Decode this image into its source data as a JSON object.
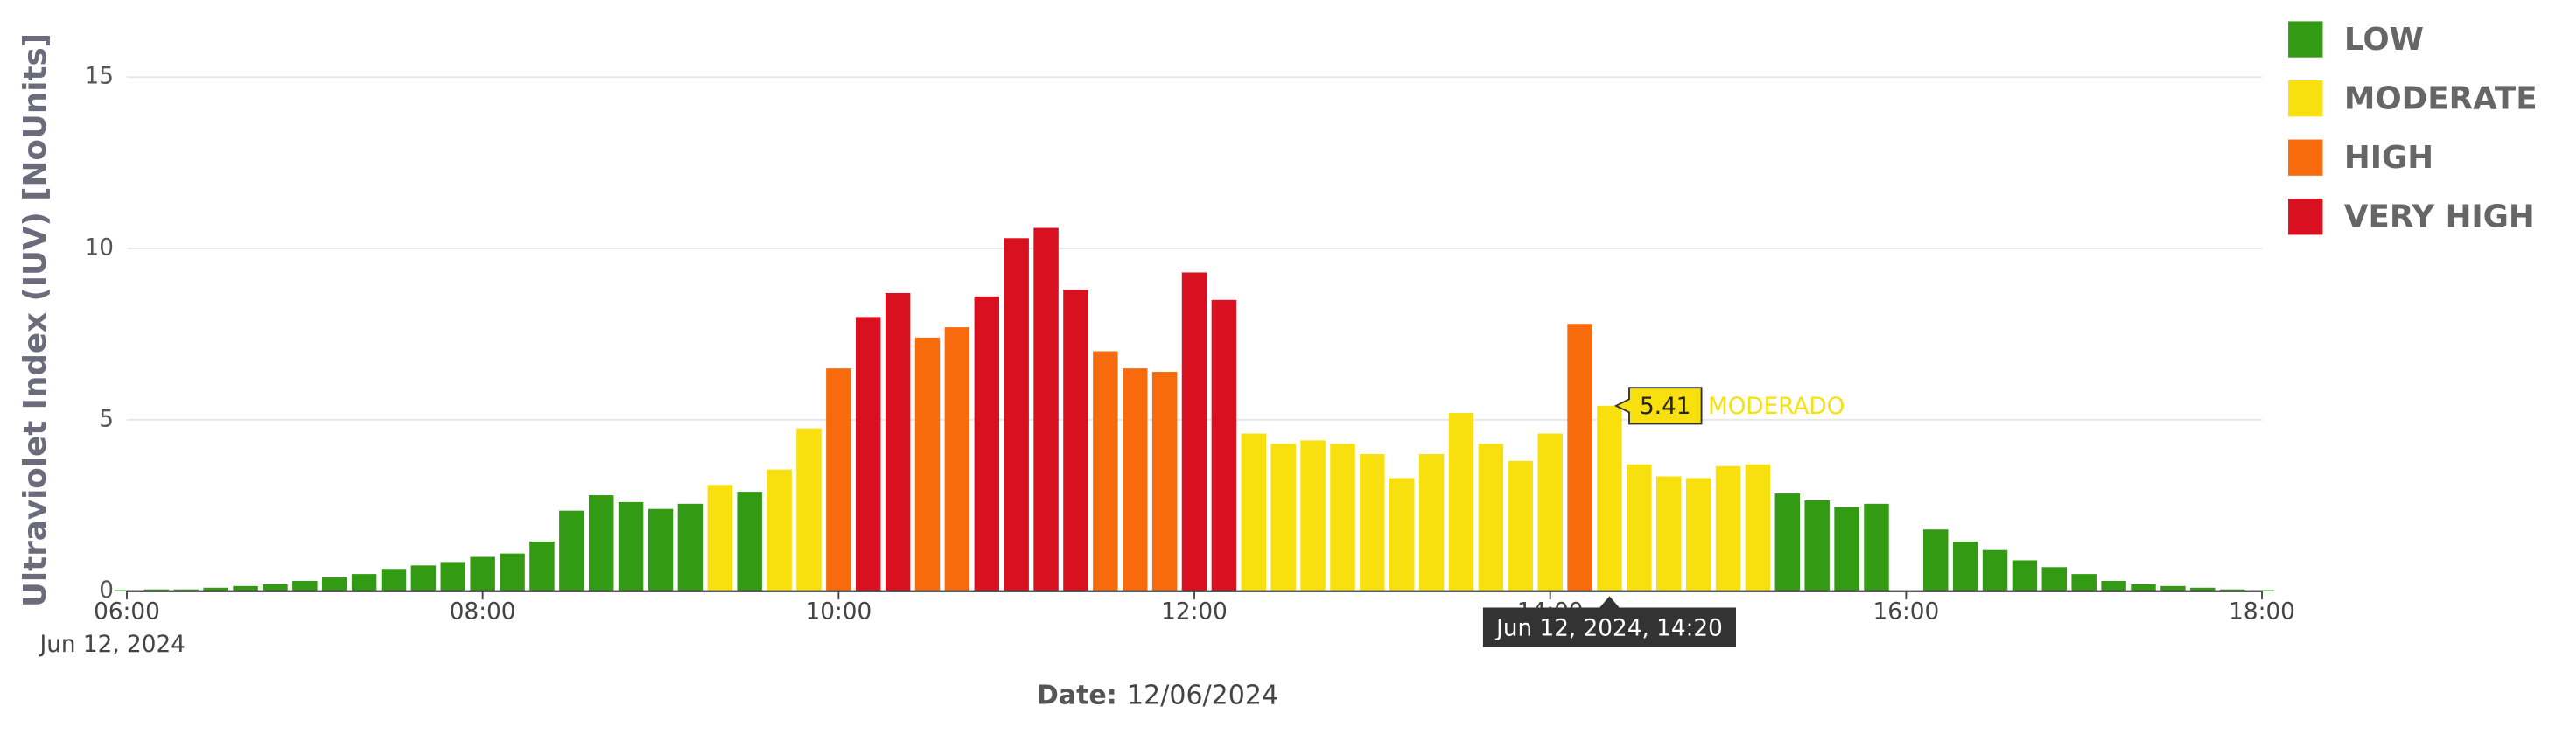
{
  "chart_data": {
    "type": "bar",
    "ylabel": "Ultraviolet Index (IUV) [NoUnits]",
    "xlabel_title": "Date:",
    "xlabel_value": "12/06/2024",
    "x_date": "Jun 12, 2024",
    "ylim": [
      0,
      15
    ],
    "yticks": [
      0,
      5,
      10,
      15
    ],
    "grid": true,
    "xlim": [
      "06:00",
      "18:00"
    ],
    "xticks": [
      "06:00",
      "08:00",
      "10:00",
      "12:00",
      "14:00",
      "16:00",
      "18:00"
    ],
    "legend": [
      {
        "name": "LOW",
        "color": "#339a14"
      },
      {
        "name": "MODERATE",
        "color": "#f7e00d"
      },
      {
        "name": "HIGH",
        "color": "#f76b0c"
      },
      {
        "name": "VERY HIGH",
        "color": "#d8101f"
      }
    ],
    "x": [
      "06:00",
      "06:10",
      "06:20",
      "06:30",
      "06:40",
      "06:50",
      "07:00",
      "07:10",
      "07:20",
      "07:30",
      "07:40",
      "07:50",
      "08:00",
      "08:10",
      "08:20",
      "08:30",
      "08:40",
      "08:50",
      "09:00",
      "09:10",
      "09:20",
      "09:30",
      "09:40",
      "09:50",
      "10:00",
      "10:10",
      "10:20",
      "10:30",
      "10:40",
      "10:50",
      "11:00",
      "11:10",
      "11:20",
      "11:30",
      "11:40",
      "11:50",
      "12:00",
      "12:10",
      "12:20",
      "12:30",
      "12:40",
      "12:50",
      "13:00",
      "13:10",
      "13:20",
      "13:30",
      "13:40",
      "13:50",
      "14:00",
      "14:10",
      "14:20",
      "14:30",
      "14:40",
      "14:50",
      "15:00",
      "15:10",
      "15:20",
      "15:30",
      "15:40",
      "15:50",
      "16:00",
      "16:10",
      "16:20",
      "16:30",
      "16:40",
      "16:50",
      "17:00",
      "17:10",
      "17:20",
      "17:30",
      "17:40",
      "17:50",
      "18:00"
    ],
    "values": [
      0.03,
      0.05,
      0.05,
      0.1,
      0.15,
      0.2,
      0.3,
      0.4,
      0.5,
      0.65,
      0.75,
      0.85,
      1.0,
      1.1,
      1.45,
      2.35,
      2.8,
      2.6,
      2.4,
      2.55,
      3.1,
      2.9,
      3.55,
      4.75,
      6.5,
      8.0,
      8.7,
      7.4,
      7.7,
      8.6,
      10.3,
      10.6,
      8.8,
      7.0,
      6.5,
      6.4,
      9.3,
      8.5,
      4.6,
      4.3,
      4.4,
      4.3,
      4.0,
      3.3,
      4.0,
      5.2,
      4.3,
      3.8,
      4.6,
      7.8,
      5.41,
      3.7,
      3.35,
      3.3,
      3.65,
      3.7,
      2.85,
      2.65,
      2.45,
      2.55,
      null,
      1.8,
      1.45,
      1.2,
      0.9,
      0.7,
      0.5,
      0.3,
      0.2,
      0.15,
      0.1,
      0.05,
      0.03
    ],
    "colors": [
      "#339a14",
      "#339a14",
      "#339a14",
      "#339a14",
      "#339a14",
      "#339a14",
      "#339a14",
      "#339a14",
      "#339a14",
      "#339a14",
      "#339a14",
      "#339a14",
      "#339a14",
      "#339a14",
      "#339a14",
      "#339a14",
      "#339a14",
      "#339a14",
      "#339a14",
      "#339a14",
      "#f7e00d",
      "#339a14",
      "#f7e00d",
      "#f7e00d",
      "#f76b0c",
      "#d8101f",
      "#d8101f",
      "#f76b0c",
      "#f76b0c",
      "#d8101f",
      "#d8101f",
      "#d8101f",
      "#d8101f",
      "#f76b0c",
      "#f76b0c",
      "#f76b0c",
      "#d8101f",
      "#d8101f",
      "#f7e00d",
      "#f7e00d",
      "#f7e00d",
      "#f7e00d",
      "#f7e00d",
      "#f7e00d",
      "#f7e00d",
      "#f7e00d",
      "#f7e00d",
      "#f7e00d",
      "#f7e00d",
      "#f76b0c",
      "#f7e00d",
      "#f7e00d",
      "#f7e00d",
      "#f7e00d",
      "#f7e00d",
      "#f7e00d",
      "#339a14",
      "#339a14",
      "#339a14",
      "#339a14",
      null,
      "#339a14",
      "#339a14",
      "#339a14",
      "#339a14",
      "#339a14",
      "#339a14",
      "#339a14",
      "#339a14",
      "#339a14",
      "#339a14",
      "#339a14",
      "#339a14"
    ],
    "tooltip": {
      "index": 50,
      "category": "MODERADO",
      "hover_label": "Jun 12, 2024, 14:20"
    }
  }
}
